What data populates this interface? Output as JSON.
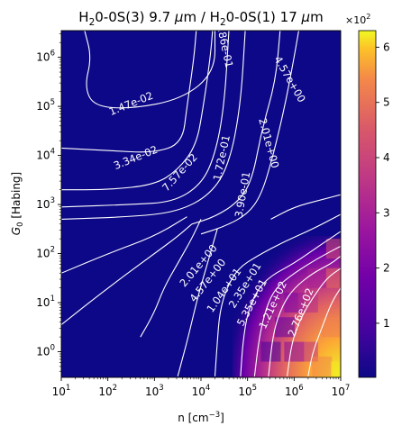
{
  "chart_data": {
    "type": "heatmap",
    "title": {
      "parts": [
        {
          "text": "H",
          "sub": false
        },
        {
          "text": "2",
          "sub": true
        },
        {
          "text": "0-0S(3) 9.7 ",
          "sub": false
        },
        {
          "text": "μ",
          "sub": false,
          "italic": true
        },
        {
          "text": "m / H",
          "sub": false
        },
        {
          "text": "2",
          "sub": true
        },
        {
          "text": "0-0S(1) 17 ",
          "sub": false
        },
        {
          "text": "μ",
          "sub": false,
          "italic": true
        },
        {
          "text": "m",
          "sub": false
        }
      ]
    },
    "xaxis": {
      "label": "n [cm",
      "label_sup": "−3",
      "label_end": "]",
      "scale": "log",
      "range": [
        10,
        10000000
      ],
      "ticks": [
        {
          "base": "10",
          "exp": "1",
          "value": 10
        },
        {
          "base": "10",
          "exp": "2",
          "value": 100
        },
        {
          "base": "10",
          "exp": "3",
          "value": 1000
        },
        {
          "base": "10",
          "exp": "4",
          "value": 10000
        },
        {
          "base": "10",
          "exp": "5",
          "value": 100000
        },
        {
          "base": "10",
          "exp": "6",
          "value": 1000000
        },
        {
          "base": "10",
          "exp": "7",
          "value": 10000000
        }
      ]
    },
    "yaxis": {
      "label_var": "G",
      "label_sub": "0",
      "label_rest": " [Habing]",
      "scale": "log",
      "range": [
        0.3,
        3500000
      ],
      "ticks": [
        {
          "base": "10",
          "exp": "0",
          "value": 1
        },
        {
          "base": "10",
          "exp": "1",
          "value": 10
        },
        {
          "base": "10",
          "exp": "2",
          "value": 100
        },
        {
          "base": "10",
          "exp": "3",
          "value": 1000
        },
        {
          "base": "10",
          "exp": "4",
          "value": 10000
        },
        {
          "base": "10",
          "exp": "5",
          "value": 100000
        },
        {
          "base": "10",
          "exp": "6",
          "value": 1000000
        }
      ]
    },
    "colorbar": {
      "colormap": "plasma",
      "range": [
        0.02,
        6.3
      ],
      "multiplier_prefix": "×10",
      "multiplier_exp": "2",
      "ticks": [
        "1",
        "2",
        "3",
        "4",
        "5",
        "6"
      ],
      "tick_values": [
        1,
        2,
        3,
        4,
        5,
        6
      ]
    },
    "hot_region": {
      "description_values_in_units_of_1e2": true,
      "cells": [
        {
          "log_n": 5.5,
          "log_g": 0.0,
          "value": 0.9
        },
        {
          "log_n": 5.8,
          "log_g": 0.5,
          "value": 1.4
        },
        {
          "log_n": 6.0,
          "log_g": 0.0,
          "value": 2.2
        },
        {
          "log_n": 6.0,
          "log_g": 1.0,
          "value": 2.0
        },
        {
          "log_n": 6.3,
          "log_g": 0.0,
          "value": 3.6
        },
        {
          "log_n": 6.3,
          "log_g": 1.0,
          "value": 3.4
        },
        {
          "log_n": 6.5,
          "log_g": 1.5,
          "value": 3.0
        },
        {
          "log_n": 6.6,
          "log_g": -0.3,
          "value": 5.4
        },
        {
          "log_n": 6.8,
          "log_g": 0.5,
          "value": 5.3
        },
        {
          "log_n": 6.9,
          "log_g": 1.5,
          "value": 4.8
        },
        {
          "log_n": 6.9,
          "log_g": 2.1,
          "value": 4.3
        },
        {
          "log_n": 7.0,
          "log_g": -0.4,
          "value": 6.2
        }
      ]
    },
    "contour_labels": [
      {
        "text": "1.47e-02",
        "log_n": 2.5,
        "log_g": 5.05,
        "angle": -22
      },
      {
        "text": "3.34e-02",
        "log_n": 2.6,
        "log_g": 3.95,
        "angle": -22
      },
      {
        "text": "7.57e-02",
        "log_n": 3.55,
        "log_g": 3.65,
        "angle": -48
      },
      {
        "text": "1.72e-01",
        "log_n": 4.45,
        "log_g": 3.95,
        "angle": -78
      },
      {
        "text": "3.90e-01",
        "log_n": 4.9,
        "log_g": 3.2,
        "angle": -80
      },
      {
        "text": "8.86e-01",
        "log_n": 4.5,
        "log_g": 6.25,
        "angle": 78
      },
      {
        "text": "2.01e+00",
        "log_n": 5.45,
        "log_g": 4.25,
        "angle": 75
      },
      {
        "text": "4.57e+00",
        "log_n": 5.9,
        "log_g": 5.55,
        "angle": 60
      },
      {
        "text": "2.01e+00",
        "log_n": 3.95,
        "log_g": 1.75,
        "angle": -50
      },
      {
        "text": "4.57e+00",
        "log_n": 4.15,
        "log_g": 1.45,
        "angle": -52
      },
      {
        "text": "1.04e+01",
        "log_n": 4.5,
        "log_g": 1.25,
        "angle": -55
      },
      {
        "text": "2.35e+01",
        "log_n": 4.95,
        "log_g": 1.35,
        "angle": -58
      },
      {
        "text": "5.35e+01",
        "log_n": 5.1,
        "log_g": 1.0,
        "angle": -62
      },
      {
        "text": "1.21e+02",
        "log_n": 5.55,
        "log_g": 0.95,
        "angle": -65
      },
      {
        "text": "2.76e+02",
        "log_n": 6.15,
        "log_g": 0.8,
        "angle": -68
      }
    ],
    "contours": [
      [
        [
          1.0,
          0.55
        ],
        [
          2.0,
          1.3
        ],
        [
          3.0,
          2.0
        ],
        [
          3.5,
          2.35
        ],
        [
          3.8,
          2.6
        ]
      ],
      [
        [
          1.0,
          1.6
        ],
        [
          2.0,
          2.0
        ],
        [
          3.0,
          2.35
        ],
        [
          3.7,
          2.75
        ]
      ],
      [
        [
          2.7,
          0.3
        ],
        [
          3.0,
          0.8
        ],
        [
          3.2,
          1.3
        ],
        [
          3.5,
          1.8
        ],
        [
          3.8,
          2.3
        ],
        [
          4.0,
          2.7
        ]
      ],
      [
        [
          3.5,
          -0.5
        ],
        [
          3.7,
          0.2
        ],
        [
          3.85,
          0.8
        ],
        [
          4.0,
          1.35
        ],
        [
          4.2,
          2.0
        ],
        [
          4.35,
          2.5
        ]
      ],
      [
        [
          4.3,
          -0.5
        ],
        [
          4.35,
          0.2
        ],
        [
          4.4,
          0.8
        ],
        [
          4.55,
          1.3
        ],
        [
          4.8,
          1.7
        ],
        [
          5.2,
          1.95
        ],
        [
          5.8,
          2.25
        ],
        [
          6.4,
          2.5
        ],
        [
          7.0,
          2.8
        ]
      ],
      [
        [
          4.85,
          -0.5
        ],
        [
          4.9,
          0.2
        ],
        [
          5.0,
          0.8
        ],
        [
          5.2,
          1.25
        ],
        [
          5.5,
          1.55
        ],
        [
          6.0,
          1.8
        ],
        [
          6.6,
          2.2
        ],
        [
          7.0,
          2.45
        ]
      ],
      [
        [
          5.15,
          -0.5
        ],
        [
          5.25,
          0.3
        ],
        [
          5.4,
          0.9
        ],
        [
          5.6,
          1.3
        ],
        [
          6.0,
          1.6
        ],
        [
          6.5,
          1.9
        ],
        [
          7.0,
          2.15
        ]
      ],
      [
        [
          5.45,
          -0.5
        ],
        [
          5.55,
          0.4
        ],
        [
          5.75,
          0.95
        ],
        [
          6.0,
          1.3
        ],
        [
          6.4,
          1.6
        ],
        [
          6.8,
          1.8
        ],
        [
          7.0,
          1.95
        ]
      ],
      [
        [
          5.85,
          -0.5
        ],
        [
          5.95,
          0.2
        ],
        [
          6.15,
          0.7
        ],
        [
          6.4,
          1.1
        ],
        [
          6.7,
          1.5
        ],
        [
          7.0,
          1.7
        ]
      ],
      [
        [
          6.3,
          -0.5
        ],
        [
          6.4,
          0.0
        ],
        [
          6.6,
          0.5
        ],
        [
          6.8,
          1.0
        ],
        [
          7.0,
          1.3
        ]
      ],
      [
        [
          1.5,
          6.55
        ],
        [
          1.65,
          6.0
        ],
        [
          1.5,
          5.4
        ],
        [
          1.7,
          5.0
        ],
        [
          2.5,
          4.95
        ],
        [
          3.6,
          5.15
        ],
        [
          4.3,
          5.7
        ],
        [
          4.3,
          6.55
        ]
      ],
      [
        [
          1.0,
          4.15
        ],
        [
          2.0,
          4.1
        ],
        [
          3.0,
          4.05
        ],
        [
          3.6,
          4.25
        ],
        [
          3.7,
          5.0
        ],
        [
          3.85,
          6.0
        ],
        [
          3.9,
          6.55
        ]
      ],
      [
        [
          1.0,
          3.3
        ],
        [
          2.0,
          3.3
        ],
        [
          3.0,
          3.4
        ],
        [
          3.5,
          3.7
        ],
        [
          3.9,
          4.2
        ],
        [
          4.05,
          5.0
        ],
        [
          4.2,
          6.0
        ],
        [
          4.25,
          6.55
        ]
      ],
      [
        [
          1.0,
          2.95
        ],
        [
          2.5,
          3.0
        ],
        [
          3.4,
          3.05
        ],
        [
          4.0,
          3.4
        ],
        [
          4.3,
          4.0
        ],
        [
          4.5,
          5.0
        ],
        [
          4.6,
          6.55
        ]
      ],
      [
        [
          1.0,
          2.7
        ],
        [
          2.5,
          2.75
        ],
        [
          3.5,
          2.85
        ],
        [
          4.2,
          3.2
        ],
        [
          4.6,
          3.8
        ],
        [
          4.85,
          5.0
        ],
        [
          4.95,
          6.55
        ]
      ],
      [
        [
          3.8,
          2.6
        ],
        [
          4.3,
          2.75
        ],
        [
          4.8,
          3.05
        ],
        [
          5.1,
          3.5
        ],
        [
          5.3,
          4.5
        ],
        [
          5.6,
          5.5
        ],
        [
          5.7,
          6.55
        ]
      ],
      [
        [
          4.0,
          2.4
        ],
        [
          4.5,
          2.55
        ],
        [
          5.0,
          2.8
        ],
        [
          5.3,
          3.2
        ],
        [
          5.55,
          4.0
        ],
        [
          5.8,
          5.0
        ],
        [
          6.0,
          6.0
        ],
        [
          6.1,
          6.55
        ]
      ],
      [
        [
          5.5,
          2.7
        ],
        [
          6.0,
          2.95
        ],
        [
          6.6,
          3.1
        ],
        [
          7.0,
          3.2
        ]
      ]
    ]
  }
}
